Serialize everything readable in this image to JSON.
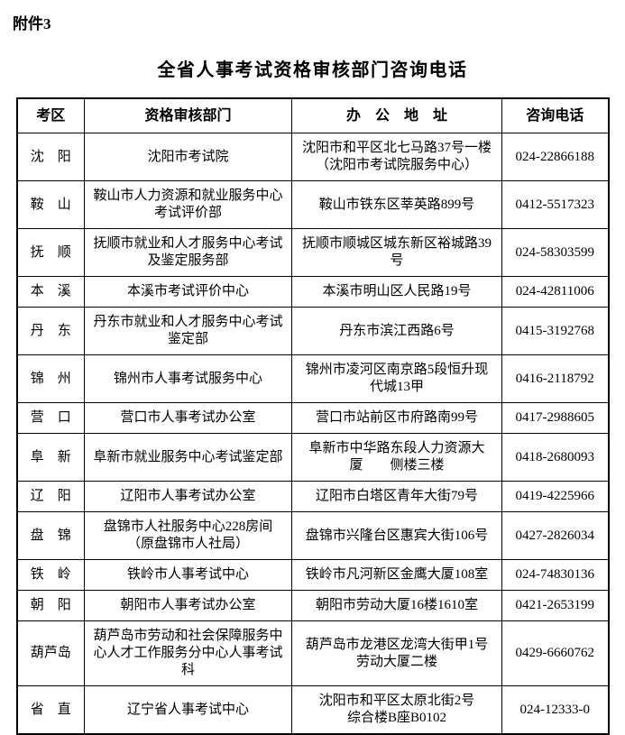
{
  "attachment_label": "附件3",
  "title": "全省人事考试资格审核部门咨询电话",
  "colors": {
    "text": "#000000",
    "background": "#ffffff",
    "border": "#000000"
  },
  "table": {
    "headers": [
      "考区",
      "资格审核部门",
      "办　公　地　址",
      "咨询电话"
    ],
    "rows": [
      {
        "region": "沈　阳",
        "department": "沈阳市考试院",
        "address": "沈阳市和平区北七马路37号一楼\n（沈阳市考试院服务中心）",
        "phone": "024-22866188"
      },
      {
        "region": "鞍　山",
        "department": "鞍山市人力资源和就业服务中心\n考试评价部",
        "address": "鞍山市铁东区莘英路899号",
        "phone": "0412-5517323"
      },
      {
        "region": "抚　顺",
        "department": "抚顺市就业和人才服务中心考试\n及鉴定服务部",
        "address": "抚顺市顺城区城东新区裕城路39\n号",
        "phone": "024-58303599"
      },
      {
        "region": "本　溪",
        "department": "本溪市考试评价中心",
        "address": "本溪市明山区人民路19号",
        "phone": "024-42811006"
      },
      {
        "region": "丹　东",
        "department": "丹东市就业和人才服务中心考试\n鉴定部",
        "address": "丹东市滨江西路6号",
        "phone": "0415-3192768"
      },
      {
        "region": "锦　州",
        "department": "锦州市人事考试服务中心",
        "address": "锦州市凌河区南京路5段恒升现\n代城13甲",
        "phone": "0416-2118792"
      },
      {
        "region": "营　口",
        "department": "营口市人事考试办公室",
        "address": "营口市站前区市府路南99号",
        "phone": "0417-2988605"
      },
      {
        "region": "阜　新",
        "department": "阜新市就业服务中心考试鉴定部",
        "address": "阜新市中华路东段人力资源大\n厦　　侧楼三楼",
        "phone": "0418-2680093"
      },
      {
        "region": "辽　阳",
        "department": "辽阳市人事考试办公室",
        "address": "辽阳市白塔区青年大街79号",
        "phone": "0419-4225966"
      },
      {
        "region": "盘　锦",
        "department": "盘锦市人社服务中心228房间\n（原盘锦市人社局）",
        "address": "盘锦市兴隆台区惠宾大街106号",
        "phone": "0427-2826034"
      },
      {
        "region": "铁　岭",
        "department": "铁岭市人事考试中心",
        "address": "铁岭市凡河新区金鹰大厦108室",
        "phone": "024-74830136"
      },
      {
        "region": "朝　阳",
        "department": "朝阳市人事考试办公室",
        "address": "朝阳市劳动大厦16楼1610室",
        "phone": "0421-2653199"
      },
      {
        "region": "葫芦岛",
        "department": "葫芦岛市劳动和社会保障服务中\n心人才工作服务分中心人事考试\n科",
        "address": "葫芦岛市龙港区龙湾大街甲1号\n劳动大厦二楼",
        "phone": "0429-6660762"
      },
      {
        "region": "省　直",
        "department": "辽宁省人事考试中心",
        "address": "沈阳市和平区太原北街2号\n综合楼B座B0102",
        "phone": "024-12333-0"
      }
    ]
  }
}
